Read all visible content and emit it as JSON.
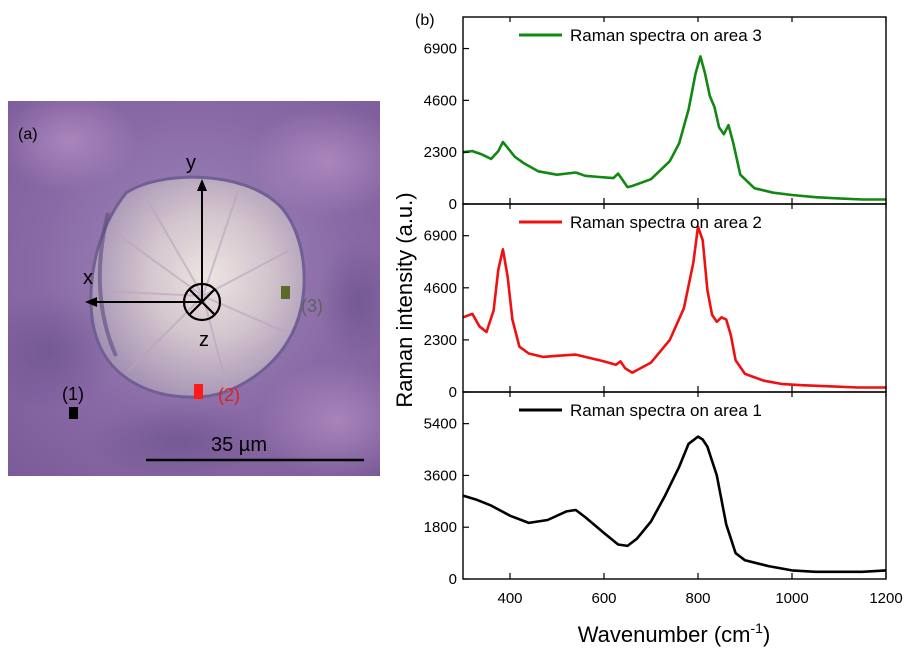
{
  "panel_a": {
    "label": "(a)",
    "axis_x": "x",
    "axis_y": "y",
    "axis_z": "z",
    "markers": [
      {
        "label": "(1)",
        "color": "#000000"
      },
      {
        "label": "(2)",
        "color": "#ff1a1a"
      },
      {
        "label": "(3)",
        "color": "#5a6a2a"
      }
    ],
    "scale_bar": "35 µm",
    "colors": {
      "background": "#8a6aa8",
      "crystal": "#d8c8c8",
      "label_2": "#e02020",
      "label_3": "#606060"
    }
  },
  "panel_b": {
    "label": "(b)"
  },
  "chart_data": {
    "type": "line",
    "layout": "stacked",
    "xlabel": "Wavenumber (cm",
    "xlabel_sup": "-1",
    "xlabel_close": ")",
    "ylabel": "Raman intensity (a.u.)",
    "xlim": [
      300,
      1200
    ],
    "xticks": [
      "400",
      "600",
      "800",
      "1000",
      "1200"
    ],
    "xtick_values": [
      400,
      600,
      800,
      1000,
      1200
    ],
    "panels": [
      {
        "name": "Raman spectra on area 3",
        "color": "#118811",
        "ylim": [
          0,
          8300
        ],
        "yticks": [
          "0",
          "2300",
          "4600",
          "6900"
        ],
        "ytick_values": [
          0,
          2300,
          4600,
          6900
        ],
        "x": [
          300,
          320,
          340,
          360,
          375,
          385,
          395,
          410,
          430,
          460,
          500,
          540,
          560,
          590,
          620,
          630,
          640,
          650,
          660,
          700,
          740,
          760,
          780,
          795,
          805,
          815,
          825,
          835,
          845,
          855,
          865,
          875,
          890,
          920,
          960,
          1000,
          1050,
          1100,
          1150,
          1200
        ],
        "y": [
          2300,
          2350,
          2200,
          2000,
          2350,
          2750,
          2500,
          2100,
          1800,
          1450,
          1300,
          1400,
          1250,
          1200,
          1150,
          1350,
          1050,
          750,
          800,
          1100,
          1900,
          2700,
          4200,
          5800,
          6550,
          5800,
          4800,
          4300,
          3400,
          3100,
          3500,
          2700,
          1300,
          700,
          500,
          400,
          300,
          250,
          200,
          200
        ]
      },
      {
        "name": "Raman spectra on area 2",
        "color": "#ee1111",
        "ylim": [
          0,
          8300
        ],
        "yticks": [
          "0",
          "2300",
          "4600",
          "6900"
        ],
        "ytick_values": [
          0,
          2300,
          4600,
          6900
        ],
        "x": [
          300,
          320,
          335,
          350,
          365,
          375,
          385,
          395,
          405,
          420,
          440,
          470,
          500,
          540,
          570,
          600,
          625,
          635,
          645,
          660,
          700,
          740,
          770,
          790,
          800,
          810,
          820,
          830,
          840,
          850,
          860,
          870,
          880,
          900,
          940,
          980,
          1020,
          1080,
          1140,
          1200
        ],
        "y": [
          3300,
          3450,
          2900,
          2650,
          3600,
          5400,
          6300,
          5100,
          3200,
          2000,
          1700,
          1550,
          1600,
          1650,
          1500,
          1350,
          1200,
          1350,
          1050,
          850,
          1300,
          2300,
          3700,
          5700,
          7300,
          6700,
          4500,
          3400,
          3100,
          3300,
          3200,
          2500,
          1400,
          800,
          500,
          350,
          300,
          250,
          200,
          200
        ]
      },
      {
        "name": "Raman spectra on area 1",
        "color": "#000000",
        "ylim": [
          0,
          6500
        ],
        "yticks": [
          "0",
          "1800",
          "3600",
          "5400"
        ],
        "ytick_values": [
          0,
          1800,
          3600,
          5400
        ],
        "x": [
          300,
          330,
          360,
          400,
          440,
          480,
          520,
          540,
          560,
          600,
          630,
          650,
          670,
          700,
          730,
          760,
          780,
          800,
          810,
          820,
          840,
          860,
          880,
          900,
          950,
          1000,
          1050,
          1100,
          1150,
          1200
        ],
        "y": [
          2900,
          2750,
          2550,
          2200,
          1950,
          2050,
          2350,
          2400,
          2150,
          1600,
          1200,
          1150,
          1400,
          2000,
          2900,
          3900,
          4700,
          4950,
          4850,
          4600,
          3600,
          1900,
          900,
          650,
          450,
          300,
          250,
          250,
          250,
          300
        ]
      }
    ]
  }
}
